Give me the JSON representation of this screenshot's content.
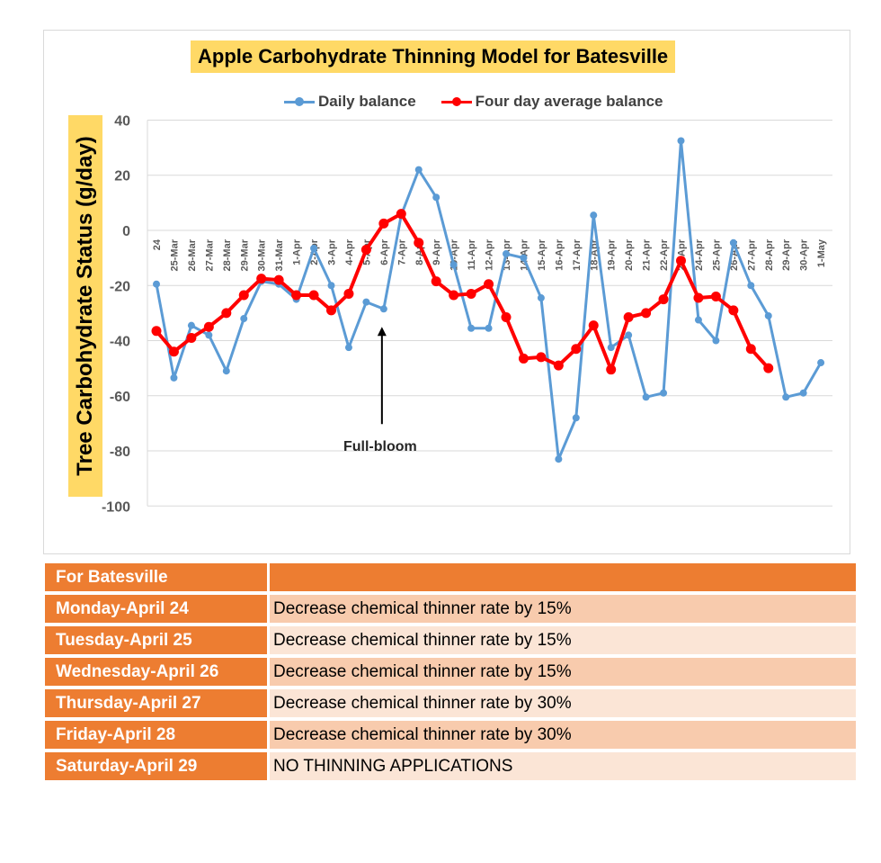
{
  "chart_data": {
    "type": "line",
    "title": "Apple Carbohydrate Thinning Model for Batesville",
    "ylabel": "Tree Carbohydrate Status (g/day)",
    "xlabel": "",
    "ylim": [
      -100,
      40
    ],
    "yticks": [
      40,
      20,
      0,
      -20,
      -40,
      -60,
      -80,
      -100
    ],
    "categories": [
      "24",
      "25-Mar",
      "26-Mar",
      "27-Mar",
      "28-Mar",
      "29-Mar",
      "30-Mar",
      "31-Mar",
      "1-Apr",
      "2-Apr",
      "3-Apr",
      "4-Apr",
      "5-Apr",
      "6-Apr",
      "7-Apr",
      "8-Apr",
      "9-Apr",
      "10-Apr",
      "11-Apr",
      "12-Apr",
      "13-Apr",
      "14-Apr",
      "15-Apr",
      "16-Apr",
      "17-Apr",
      "18-Apr",
      "19-Apr",
      "20-Apr",
      "21-Apr",
      "22-Apr",
      "23-Apr",
      "24-Apr",
      "25-Apr",
      "26-Apr",
      "27-Apr",
      "28-Apr",
      "29-Apr",
      "30-Apr",
      "1-May"
    ],
    "series": [
      {
        "name": "Daily balance",
        "color": "#5b9bd5",
        "values": [
          -19.5,
          -53.5,
          -34.5,
          -38,
          -51,
          -32,
          -18.5,
          -19.5,
          -25,
          -6.5,
          -20,
          -42.5,
          -26,
          -28.5,
          5.5,
          22,
          12,
          -12.5,
          -35.5,
          -35.5,
          -8.5,
          -10,
          -24.5,
          -83,
          -68,
          5.5,
          -42.5,
          -38,
          -60.5,
          -59,
          32.5,
          -32.5,
          -40,
          -4.5,
          -20,
          -31,
          -60.5,
          -59,
          -48
        ]
      },
      {
        "name": "Four day average balance",
        "color": "#ff0000",
        "values": [
          -36.5,
          -44,
          -39,
          -35,
          -30,
          -23.5,
          -17.5,
          -18,
          -23.5,
          -23.5,
          -29,
          -23,
          -7,
          2.5,
          6,
          -4.5,
          -18.5,
          -23.5,
          -23,
          -19.5,
          -31.5,
          -46.5,
          -46,
          -49,
          -43,
          -34.5,
          -50.5,
          -31.5,
          -30,
          -25,
          -11,
          -24.5,
          -24,
          -29,
          -43,
          -50,
          null,
          null,
          null
        ]
      }
    ],
    "annotations": [
      {
        "text": "Full-bloom",
        "x": "6-Apr",
        "y": -35
      }
    ],
    "legend": "top",
    "grid": "horizontal"
  },
  "table": {
    "header": "For Batesville",
    "header_right": "",
    "rows": [
      {
        "day": "Monday-April 24",
        "action": "Decrease chemical thinner rate by 15%"
      },
      {
        "day": "Tuesday-April 25",
        "action": "Decrease chemical thinner rate by 15%"
      },
      {
        "day": "Wednesday-April 26",
        "action": "Decrease chemical thinner rate by 15%"
      },
      {
        "day": "Thursday-April 27",
        "action": "Decrease chemical thinner rate by 30%"
      },
      {
        "day": "Friday-April 28",
        "action": "Decrease chemical thinner rate by 30%"
      },
      {
        "day": "Saturday-April 29",
        "action": " NO THINNING APPLICATIONS"
      }
    ]
  },
  "colors": {
    "title_highlight": "#ffd966",
    "table_accent": "#ed7d31",
    "row_shade_dark": "#f8cbad",
    "row_shade_light": "#fbe5d6"
  }
}
